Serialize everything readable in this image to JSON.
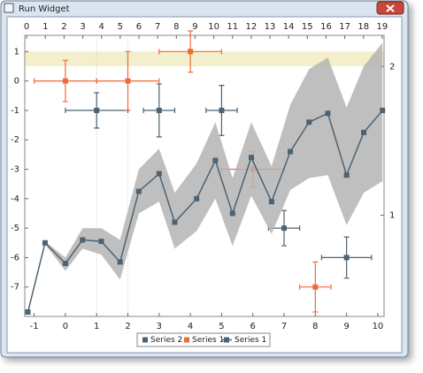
{
  "window": {
    "title": "Run Widget"
  },
  "chart_data": {
    "type": "line",
    "xlim": [
      -1.3,
      10.2
    ],
    "xticks": [
      -1,
      0,
      1,
      2,
      3,
      4,
      5,
      6,
      7,
      8,
      9,
      10
    ],
    "x2lim": [
      -0.1,
      19.1
    ],
    "x2ticks": [
      0,
      1,
      2,
      3,
      4,
      5,
      6,
      7,
      8,
      9,
      10,
      11,
      12,
      13,
      14,
      15,
      16,
      17,
      18,
      19
    ],
    "ylim": [
      -8,
      1.55
    ],
    "yticks": [
      1,
      0,
      -1,
      -2,
      -3,
      -4,
      -5,
      -6,
      -7
    ],
    "y2lim": [
      0.32,
      2.21
    ],
    "y2ticks": [
      1,
      2
    ],
    "hband": {
      "color": "#f3eecb",
      "y": [
        0.5,
        1.0
      ]
    },
    "vlines": [
      1,
      2
    ],
    "series": [
      {
        "name": "Series 2",
        "kind": "errorbar",
        "color": "#4d6272",
        "x": [
          1,
          3,
          5,
          7,
          9
        ],
        "values": [
          -1,
          -1,
          -1,
          -5,
          -6
        ],
        "xerr": [
          1,
          0.5,
          0.5,
          0.5,
          0.8
        ],
        "yerr": [
          0.6,
          0.9,
          0.85,
          0.6,
          0.7
        ]
      },
      {
        "name": "Series 1",
        "kind": "errorbar",
        "color": "#f06a3c",
        "x": [
          0,
          2,
          4,
          6,
          8
        ],
        "values": [
          0,
          0,
          1,
          -3,
          -7
        ],
        "xerr": [
          1,
          1,
          1,
          1,
          0.5
        ],
        "yerr": [
          0.7,
          1.0,
          0.7,
          0.6,
          0.85
        ]
      },
      {
        "name": "Series 1",
        "kind": "line",
        "color": "#4d6272",
        "x": [
          -1.2,
          -0.65,
          0,
          0.55,
          1.15,
          1.75,
          2.35,
          3,
          3.5,
          4.2,
          4.8,
          5.35,
          5.95,
          6.6,
          7.2,
          7.8,
          8.4,
          9.0,
          9.55,
          10.15
        ],
        "values": [
          -7.85,
          -5.5,
          -6.2,
          -5.4,
          -5.45,
          -6.15,
          -3.75,
          -3.15,
          -4.8,
          -4.0,
          -2.7,
          -4.5,
          -2.6,
          -4.1,
          -2.4,
          -1.4,
          -1.1,
          -3.2,
          -1.75,
          -1.0
        ],
        "band": {
          "color": "#b4b4b4",
          "upper": [
            -7.85,
            -5.45,
            -6.0,
            -5.0,
            -5.0,
            -5.4,
            -3.0,
            -2.3,
            -3.8,
            -2.8,
            -1.4,
            -3.3,
            -1.4,
            -2.9,
            -0.8,
            0.4,
            0.8,
            -0.9,
            0.5,
            1.3
          ],
          "lower": [
            -7.85,
            -5.55,
            -6.45,
            -5.7,
            -5.9,
            -6.75,
            -4.5,
            -4.1,
            -5.7,
            -5.1,
            -4.0,
            -5.6,
            -3.9,
            -5.2,
            -3.7,
            -3.3,
            -3.2,
            -4.9,
            -3.8,
            -3.4
          ]
        }
      }
    ]
  }
}
